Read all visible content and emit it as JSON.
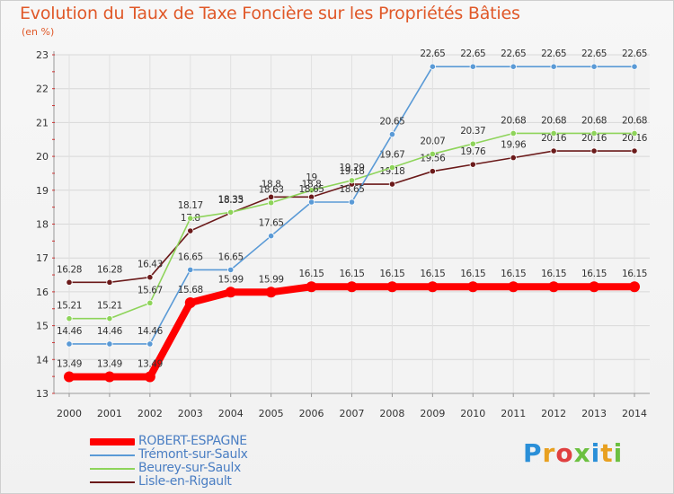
{
  "title": "Evolution du Taux de Taxe Foncière sur les Propriétés Bâties",
  "subtitle": "(en %)",
  "brand": "Proxiti",
  "chart_data": {
    "type": "line",
    "x": [
      2000,
      2001,
      2002,
      2003,
      2004,
      2005,
      2006,
      2007,
      2008,
      2009,
      2010,
      2011,
      2012,
      2013,
      2014
    ],
    "ylim": [
      13,
      23
    ],
    "yticks": [
      13,
      14,
      15,
      16,
      17,
      18,
      19,
      20,
      21,
      22,
      23
    ],
    "grid": true,
    "legend_position": "bottom-left",
    "series": [
      {
        "name": "ROBERT-ESPAGNE",
        "color": "#ff0000",
        "values": [
          13.49,
          13.49,
          13.49,
          15.68,
          15.99,
          15.99,
          16.15,
          16.15,
          16.15,
          16.15,
          16.15,
          16.15,
          16.15,
          16.15,
          16.15
        ],
        "labels": [
          "13.49",
          "13.49",
          "13.49",
          "15.68",
          "15.99",
          "15.99",
          "16.15",
          "16.15",
          "16.15",
          "16.15",
          "16.15",
          "16.15",
          "16.15",
          "16.15",
          "16.15"
        ]
      },
      {
        "name": "Trémont-sur-Saulx",
        "color": "#5a9ad6",
        "values": [
          14.46,
          14.46,
          14.46,
          16.65,
          16.65,
          17.65,
          18.65,
          18.65,
          20.65,
          22.65,
          22.65,
          22.65,
          22.65,
          22.65,
          22.65
        ],
        "labels": [
          "14.46",
          "14.46",
          "14.46",
          "16.65",
          "16.65",
          "17.65",
          "18.65",
          "18.65",
          "20.65",
          "22.65",
          "22.65",
          "22.65",
          "22.65",
          "22.65",
          "22.65"
        ]
      },
      {
        "name": "Beurey-sur-Saulx",
        "color": "#8ed45a",
        "values": [
          15.21,
          15.21,
          15.67,
          18.17,
          18.35,
          18.63,
          19.0,
          19.29,
          19.67,
          20.07,
          20.37,
          20.68,
          20.68,
          20.68,
          20.68
        ],
        "labels": [
          "15.21",
          "15.21",
          "15.67",
          "18.17",
          "18.35",
          "18.63",
          "19",
          "19.29",
          "19.67",
          "20.07",
          "20.37",
          "20.68",
          "20.68",
          "20.68",
          "20.68"
        ]
      },
      {
        "name": "Lisle-en-Rigault",
        "color": "#6b1a1a",
        "values": [
          16.28,
          16.28,
          16.43,
          17.8,
          18.33,
          18.8,
          18.8,
          19.18,
          19.18,
          19.56,
          19.76,
          19.96,
          20.16,
          20.16,
          20.16
        ],
        "labels": [
          "16.28",
          "16.28",
          "16.43",
          "17.8",
          "18.33",
          "18.8",
          "18.8",
          "19.18",
          "19.18",
          "19.56",
          "19.76",
          "19.96",
          "20.16",
          "20.16",
          "20.16"
        ]
      }
    ]
  }
}
